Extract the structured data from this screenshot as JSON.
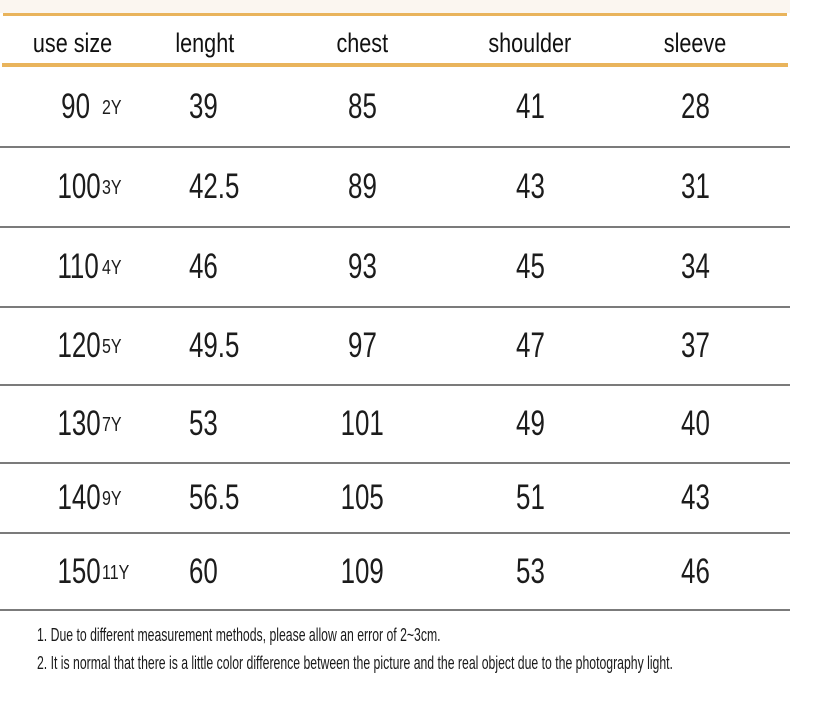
{
  "chart_data": {
    "type": "table",
    "columns": [
      "use size",
      "lenght",
      "chest",
      "shoulder",
      "sleeve"
    ],
    "rows": [
      {
        "size": "90",
        "age": "2Y",
        "lenght": "39",
        "chest": "85",
        "shoulder": "41",
        "sleeve": "28"
      },
      {
        "size": "100",
        "age": "3Y",
        "lenght": "42.5",
        "chest": "89",
        "shoulder": "43",
        "sleeve": "31"
      },
      {
        "size": "110",
        "age": "4Y",
        "lenght": "46",
        "chest": "93",
        "shoulder": "45",
        "sleeve": "34"
      },
      {
        "size": "120",
        "age": "5Y",
        "lenght": "49.5",
        "chest": "97",
        "shoulder": "47",
        "sleeve": "37"
      },
      {
        "size": "130",
        "age": "7Y",
        "lenght": "53",
        "chest": "101",
        "shoulder": "49",
        "sleeve": "40"
      },
      {
        "size": "140",
        "age": "9Y",
        "lenght": "56.5",
        "chest": "105",
        "shoulder": "51",
        "sleeve": "43"
      },
      {
        "size": "150",
        "age": "11Y",
        "lenght": "60",
        "chest": "109",
        "shoulder": "53",
        "sleeve": "46"
      }
    ]
  },
  "notes": [
    "1. Due to different measurement methods, please allow an error of 2~3cm.",
    "2. It is normal that there is a little color difference between the picture and the real object due to the photography light."
  ],
  "colors": {
    "accent": "#e9b45c",
    "row_divider": "#7b7b7b",
    "header_top_strip": "#fbf6f0",
    "text": "#1c1c1c"
  }
}
